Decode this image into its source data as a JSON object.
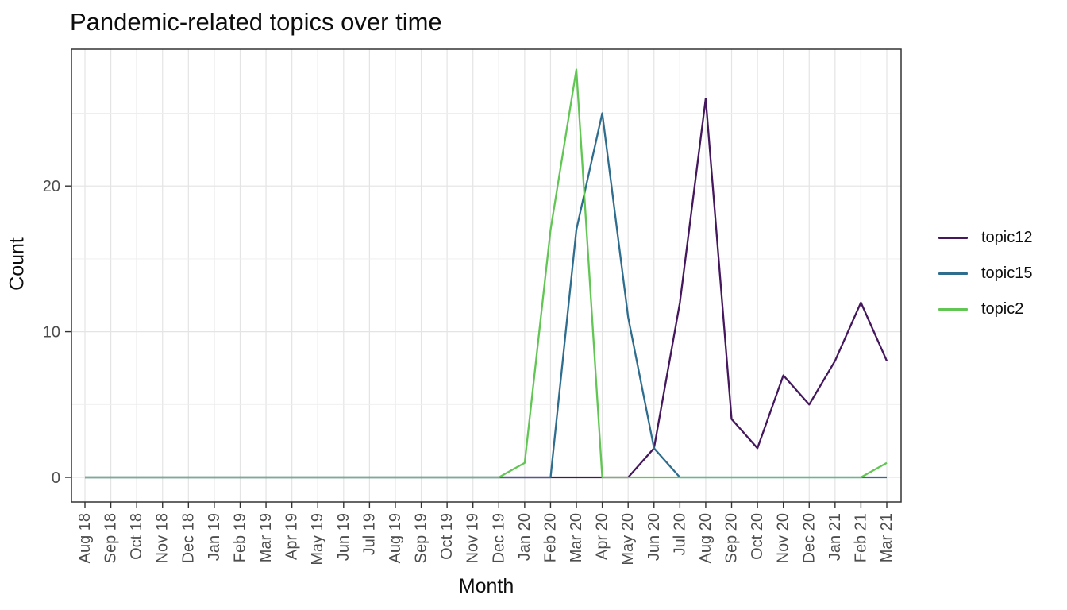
{
  "chart_data": {
    "type": "line",
    "title": "Pandemic-related topics over time",
    "xlabel": "Month",
    "ylabel": "Count",
    "categories": [
      "Aug 18",
      "Sep 18",
      "Oct 18",
      "Nov 18",
      "Dec 18",
      "Jan 19",
      "Feb 19",
      "Mar 19",
      "Apr 19",
      "May 19",
      "Jun 19",
      "Jul 19",
      "Aug 19",
      "Sep 19",
      "Oct 19",
      "Nov 19",
      "Dec 19",
      "Jan 20",
      "Feb 20",
      "Mar 20",
      "Apr 20",
      "May 20",
      "Jun 20",
      "Jul 20",
      "Aug 20",
      "Sep 20",
      "Oct 20",
      "Nov 20",
      "Dec 20",
      "Jan 21",
      "Feb 21",
      "Mar 21"
    ],
    "series": [
      {
        "name": "topic12",
        "color": "#45175d",
        "values": [
          0,
          0,
          0,
          0,
          0,
          0,
          0,
          0,
          0,
          0,
          0,
          0,
          0,
          0,
          0,
          0,
          0,
          0,
          0,
          0,
          0,
          0,
          2,
          12,
          26,
          4,
          2,
          7,
          5,
          8,
          12,
          8
        ]
      },
      {
        "name": "topic15",
        "color": "#2e6d8e",
        "values": [
          0,
          0,
          0,
          0,
          0,
          0,
          0,
          0,
          0,
          0,
          0,
          0,
          0,
          0,
          0,
          0,
          0,
          0,
          0,
          17,
          25,
          11,
          2,
          0,
          0,
          0,
          0,
          0,
          0,
          0,
          0,
          0
        ]
      },
      {
        "name": "topic2",
        "color": "#61c653",
        "values": [
          0,
          0,
          0,
          0,
          0,
          0,
          0,
          0,
          0,
          0,
          0,
          0,
          0,
          0,
          0,
          0,
          0,
          1,
          17,
          28,
          0,
          0,
          0,
          0,
          0,
          0,
          0,
          0,
          0,
          0,
          0,
          1
        ]
      }
    ],
    "yticks": [
      0,
      10,
      20
    ],
    "y_minor_gridlines": [
      5,
      15,
      25
    ],
    "ylim": [
      -1.7,
      29.4
    ],
    "grid": true,
    "legend_position": "right",
    "colors": {
      "grid_major": "#e4e4e4",
      "grid_minor": "#eeeeee",
      "panel_border": "#333333",
      "tick": "#333333",
      "tick_label": "#4d4d4d"
    }
  }
}
